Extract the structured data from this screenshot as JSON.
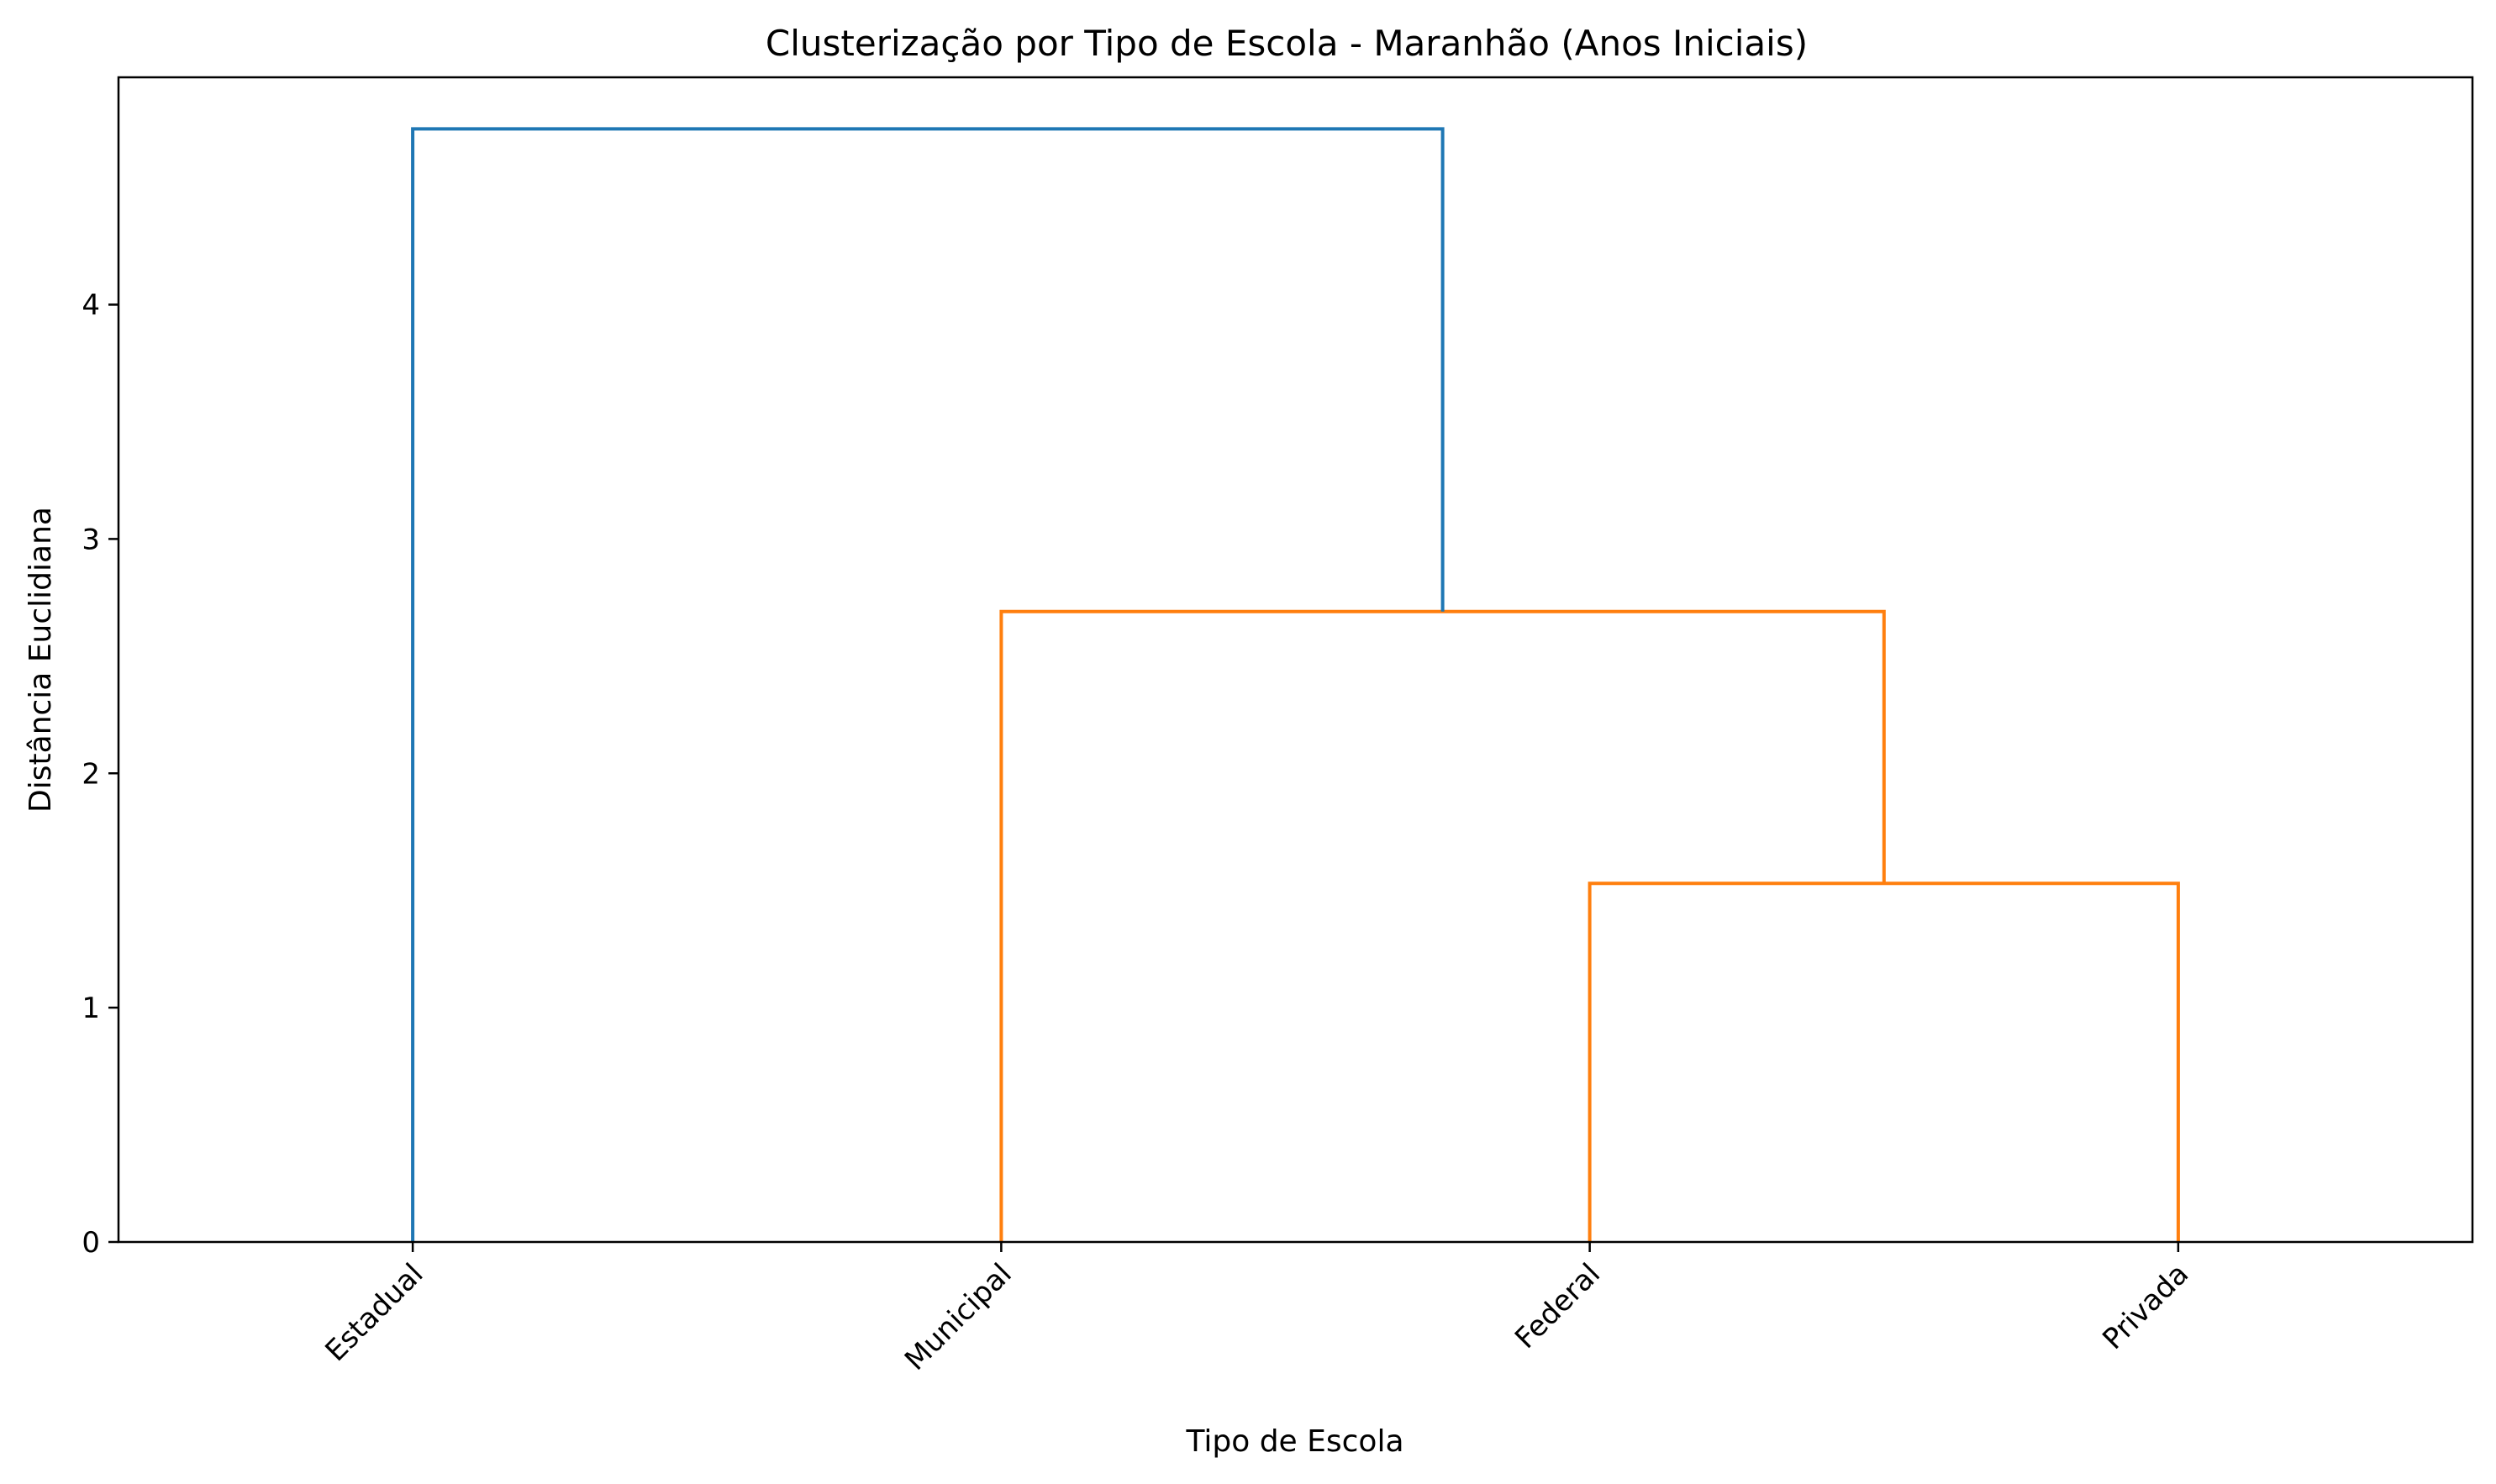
{
  "chart_data": {
    "type": "dendrogram",
    "title": "Clusterização por Tipo de Escola - Maranhão (Anos Iniciais)",
    "xlabel": "Tipo de Escola",
    "ylabel": "Distância Euclidiana",
    "leaves": [
      "Estadual",
      "Municipal",
      "Federal",
      "Privada"
    ],
    "yticks": [
      0,
      1,
      2,
      3,
      4
    ],
    "ylim": [
      0,
      4.97
    ],
    "grid": false,
    "colors": {
      "above_threshold": "#1f77b4",
      "cluster": "#ff7f0e"
    },
    "merges": [
      {
        "left": "Federal",
        "right": "Privada",
        "distance": 1.53,
        "color": "#ff7f0e"
      },
      {
        "left": "Municipal",
        "right": "Federal+Privada",
        "distance": 2.69,
        "color": "#ff7f0e"
      },
      {
        "left": "Estadual",
        "right": "Municipal+Federal+Privada",
        "distance": 4.75,
        "color": "#1f77b4"
      }
    ]
  }
}
